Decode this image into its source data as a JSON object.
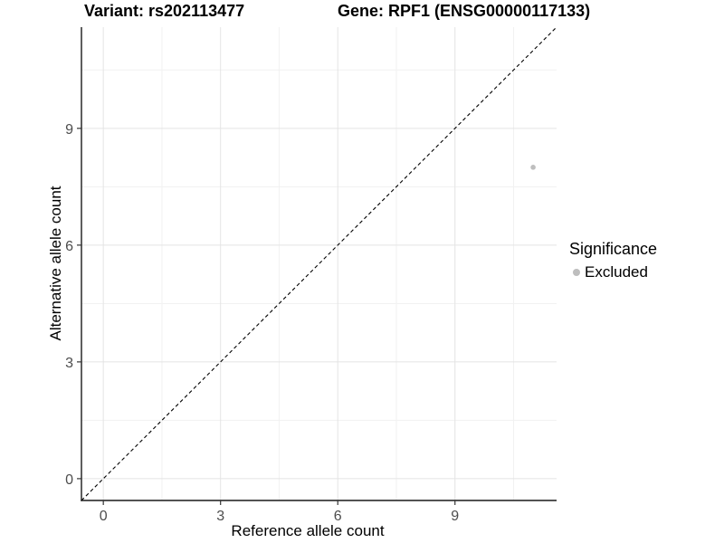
{
  "header": {
    "title_left": "Variant: rs202113477",
    "title_right": "Gene: RPF1 (ENSG00000117133)"
  },
  "chart_data": {
    "type": "scatter",
    "xlabel": "Reference allele count",
    "ylabel": "Alternative allele count",
    "xlim": [
      -0.56,
      11.6
    ],
    "ylim": [
      -0.56,
      11.6
    ],
    "x_major_ticks": [
      0,
      3,
      6,
      9
    ],
    "y_major_ticks": [
      0,
      3,
      6,
      9
    ],
    "x_minor_gridlines": [
      1.5,
      4.5,
      7.5,
      10.5
    ],
    "y_minor_gridlines": [
      1.5,
      4.5,
      7.5,
      10.5
    ],
    "grid": true,
    "identity_line": {
      "slope": 1,
      "intercept": 0,
      "style": "dashed",
      "color": "#000000"
    },
    "series": [
      {
        "name": "Excluded",
        "color": "#bebebe",
        "points": [
          {
            "x": 11,
            "y": 8
          }
        ]
      }
    ],
    "legend": {
      "position": "right",
      "title": "Significance",
      "entries": [
        {
          "label": "Excluded",
          "color": "#bebebe"
        }
      ]
    }
  },
  "colors": {
    "background": "#ffffff",
    "axis_line": "#1a1a1a",
    "tick_mark": "#333333",
    "tick_label": "#4d4d4d",
    "grid_major": "#e4e4e4",
    "grid_minor": "#f1f1f1",
    "point": "#bebebe"
  }
}
